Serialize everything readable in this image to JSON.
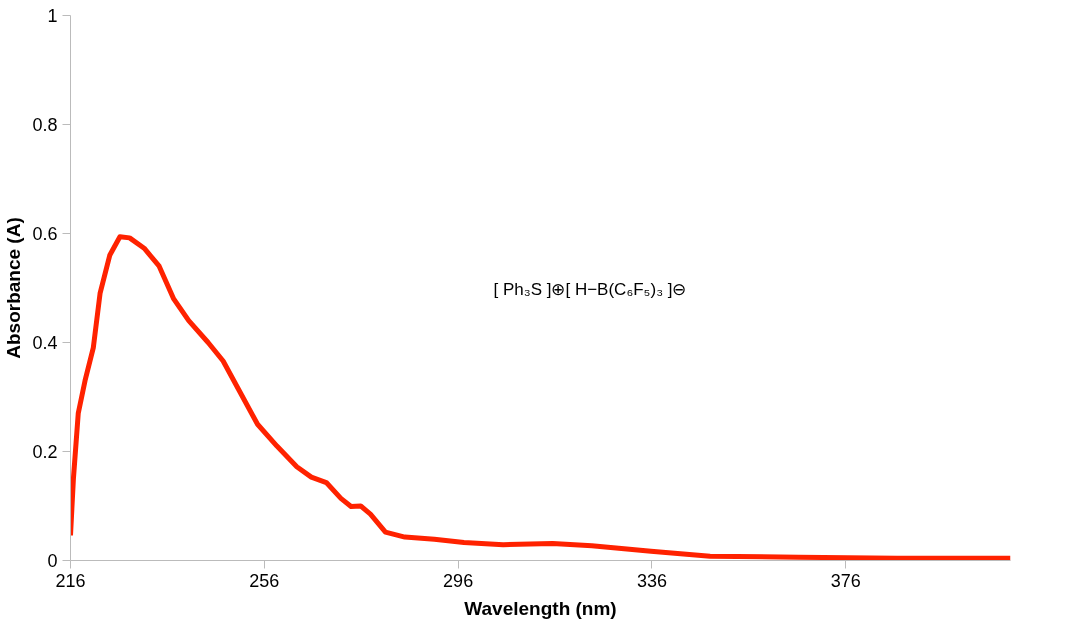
{
  "chart_data": {
    "type": "line",
    "xlabel": "Wavelength (nm)",
    "ylabel": "Absorbance (A)",
    "annotations": [
      "[ Ph₃S ]⊕[ H−B(C₆F₅)₃ ]⊖"
    ],
    "xlim": [
      216,
      410
    ],
    "xticks": [
      216,
      256,
      296,
      336,
      376
    ],
    "ylim": [
      0,
      1
    ],
    "yticks": [
      0,
      0.2,
      0.4,
      0.6,
      0.8,
      1
    ],
    "grid": false,
    "marker": "none",
    "line_style": "solid",
    "series": [
      {
        "color": "#ff2200",
        "x": [
          216,
          216.6,
          217.6,
          219,
          220.7,
          222.1,
          224.1,
          226.2,
          228.2,
          231.2,
          234.3,
          237.3,
          240.4,
          244.4,
          247.5,
          250.5,
          254.6,
          258.6,
          262.7,
          265.7,
          268.8,
          271.8,
          273.9,
          275.9,
          277.9,
          281,
          285,
          291.1,
          297.2,
          305.3,
          315.5,
          323.6,
          335.8,
          348,
          366.3,
          386.6,
          410
        ],
        "values": [
          0.046,
          0.15,
          0.27,
          0.33,
          0.39,
          0.49,
          0.56,
          0.594,
          0.592,
          0.573,
          0.54,
          0.48,
          0.44,
          0.4,
          0.366,
          0.317,
          0.25,
          0.21,
          0.172,
          0.153,
          0.143,
          0.114,
          0.099,
          0.1,
          0.085,
          0.052,
          0.043,
          0.039,
          0.033,
          0.029,
          0.031,
          0.027,
          0.017,
          0.008,
          0.006,
          0.004,
          0.004
        ]
      }
    ]
  }
}
